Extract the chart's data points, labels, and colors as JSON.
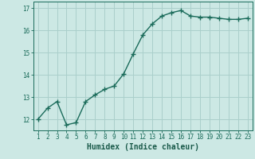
{
  "x": [
    1,
    2,
    3,
    4,
    5,
    6,
    7,
    8,
    9,
    10,
    11,
    12,
    13,
    14,
    15,
    16,
    17,
    18,
    19,
    20,
    21,
    22,
    23
  ],
  "y": [
    12.0,
    12.5,
    12.8,
    11.75,
    11.85,
    12.8,
    13.1,
    13.35,
    13.5,
    14.05,
    14.95,
    15.8,
    16.3,
    16.65,
    16.8,
    16.9,
    16.65,
    16.6,
    16.6,
    16.55,
    16.5,
    16.5,
    16.55
  ],
  "line_color": "#1a6b5a",
  "marker": "+",
  "markersize": 4,
  "markeredgewidth": 1.0,
  "linewidth": 1.0,
  "bg_color": "#cce8e4",
  "grid_color": "#aacfcb",
  "axis_color": "#1a6b5a",
  "xlabel": "Humidex (Indice chaleur)",
  "xlabel_fontsize": 7,
  "xlabel_color": "#1a5a4a",
  "yticks": [
    12,
    13,
    14,
    15,
    16,
    17
  ],
  "xticks": [
    1,
    2,
    3,
    4,
    5,
    6,
    7,
    8,
    9,
    10,
    11,
    12,
    13,
    14,
    15,
    16,
    17,
    18,
    19,
    20,
    21,
    22,
    23
  ],
  "xlim": [
    0.5,
    23.5
  ],
  "ylim": [
    11.5,
    17.3
  ],
  "tick_fontsize": 5.5,
  "tick_color": "#1a6b5a"
}
